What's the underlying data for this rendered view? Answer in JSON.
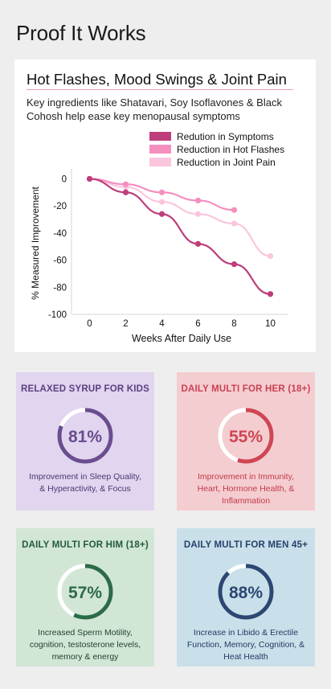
{
  "page": {
    "title": "Proof It Works"
  },
  "card": {
    "title": "Hot Flashes, Mood Swings & Joint Pain",
    "description": "Key ingredients like Shatavari, Soy Isoflavones & Black Cohosh help ease key menopausal symptoms"
  },
  "chart_data": {
    "type": "line",
    "title": "",
    "xlabel": "Weeks After Daily Use",
    "ylabel": "% Measured Improvement",
    "xlim": [
      -1,
      11
    ],
    "ylim": [
      -100,
      5
    ],
    "x_ticks": [
      0,
      2,
      4,
      6,
      8,
      10
    ],
    "y_ticks": [
      0,
      -20,
      -40,
      -60,
      -80,
      -100
    ],
    "legend_position": "top-right",
    "grid": false,
    "series": [
      {
        "name": "Redution in Symptoms",
        "color": "#be3e7c",
        "x": [
          0,
          2,
          4,
          6,
          8,
          10
        ],
        "y": [
          0,
          -10,
          -26,
          -48,
          -63,
          -85
        ]
      },
      {
        "name": "Reduction in Hot Flashes",
        "color": "#f48fbf",
        "x": [
          0,
          2,
          4,
          6,
          8
        ],
        "y": [
          0,
          -4,
          -10,
          -16,
          -23
        ]
      },
      {
        "name": "Reduction in Joint Pain",
        "color": "#fbc6dd",
        "x": [
          0,
          2,
          4,
          6,
          8,
          10
        ],
        "y": [
          0,
          -6,
          -17,
          -26,
          -33,
          -57
        ]
      }
    ]
  },
  "stats": [
    {
      "title": "RELAXED SYRUP FOR KIDS",
      "percent": 81,
      "value": "81%",
      "description": "Improvement in Sleep Quality, & Hyperactivity, & Focus",
      "bg": "#e1d5ef",
      "accent": "#6a4d8f",
      "title_color": "#5a3f80",
      "text_color": "#4d3570"
    },
    {
      "title": "DAILY MULTI FOR HER (18+)",
      "percent": 55,
      "value": "55%",
      "description": "Improvement in Immunity, Heart, Hormone Health, & Inflammation",
      "bg": "#f4cdd1",
      "accent": "#cf4652",
      "title_color": "#c9424f",
      "text_color": "#c33a47"
    },
    {
      "title": "DAILY MULTI FOR HIM (18+)",
      "percent": 57,
      "value": "57%",
      "description": "Increased Sperm Motility, cognition, testosterone levels, memory & energy",
      "bg": "#d2e6d6",
      "accent": "#2c6b47",
      "title_color": "#235c3c",
      "text_color": "#1f3f2c"
    },
    {
      "title": "DAILY MULTI FOR MEN 45+",
      "percent": 88,
      "value": "88%",
      "description": "Increase in Libido & Erectile Function, Memory, Cognition, & Heat Health",
      "bg": "#c9e0ea",
      "accent": "#2d4773",
      "title_color": "#27406b",
      "text_color": "#223a62"
    }
  ]
}
